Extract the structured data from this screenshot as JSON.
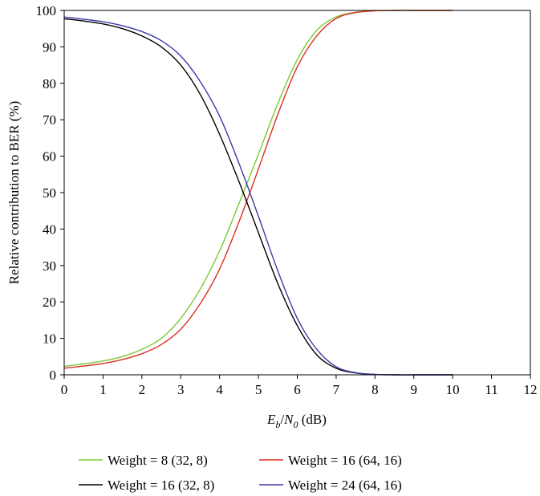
{
  "chart_data": {
    "type": "line",
    "title": "",
    "xlabel": {
      "var_main": "E",
      "var_sub": "b",
      "slash": "/",
      "denom_main": "N",
      "denom_sub": "0",
      "unit": " (dB)"
    },
    "ylabel": "Relative contribution to BER (%)",
    "xlim": [
      0,
      12
    ],
    "ylim": [
      0,
      100
    ],
    "x_ticks": [
      "0",
      "1",
      "2",
      "3",
      "4",
      "5",
      "6",
      "7",
      "8",
      "9",
      "10",
      "11",
      "12"
    ],
    "y_ticks": [
      "0",
      "10",
      "20",
      "30",
      "40",
      "50",
      "60",
      "70",
      "80",
      "90",
      "100"
    ],
    "grid": false,
    "legend_position": "bottom",
    "x": [
      0,
      0.5,
      1,
      1.5,
      2,
      2.5,
      3,
      3.5,
      4,
      4.5,
      5,
      5.5,
      6,
      6.5,
      7,
      7.5,
      8,
      8.5,
      9,
      9.5,
      10
    ],
    "series": [
      {
        "name": "Weight = 8 (32, 8)",
        "color": "#7dc832",
        "values": [
          2.3,
          3.0,
          3.8,
          5.0,
          7.0,
          10.0,
          15.5,
          23.5,
          34.0,
          47.0,
          60.5,
          74.5,
          86.5,
          94.5,
          98.2,
          99.5,
          99.9,
          100,
          100,
          100,
          100
        ]
      },
      {
        "name": "Weight = 16 (64, 16)",
        "color": "#dd2f22",
        "values": [
          1.8,
          2.4,
          3.1,
          4.2,
          5.8,
          8.3,
          12.5,
          19.5,
          29.0,
          42.0,
          56.5,
          71.5,
          84.5,
          93.0,
          97.8,
          99.4,
          99.9,
          100,
          100,
          100,
          100
        ]
      },
      {
        "name": "Weight = 16 (32, 8)",
        "color": "#000000",
        "values": [
          97.7,
          97.1,
          96.3,
          95.0,
          93.0,
          90.0,
          85.0,
          77.0,
          66.0,
          53.0,
          39.0,
          25.0,
          13.5,
          5.5,
          1.8,
          0.5,
          0.1,
          0,
          0,
          0,
          0
        ]
      },
      {
        "name": "Weight = 24 (64, 16)",
        "color": "#3a3aa8",
        "values": [
          98.2,
          97.6,
          96.9,
          95.8,
          94.2,
          91.7,
          87.5,
          80.5,
          71.0,
          58.0,
          43.5,
          28.5,
          15.5,
          7.0,
          2.2,
          0.6,
          0.1,
          0,
          0,
          0,
          0
        ]
      }
    ]
  }
}
